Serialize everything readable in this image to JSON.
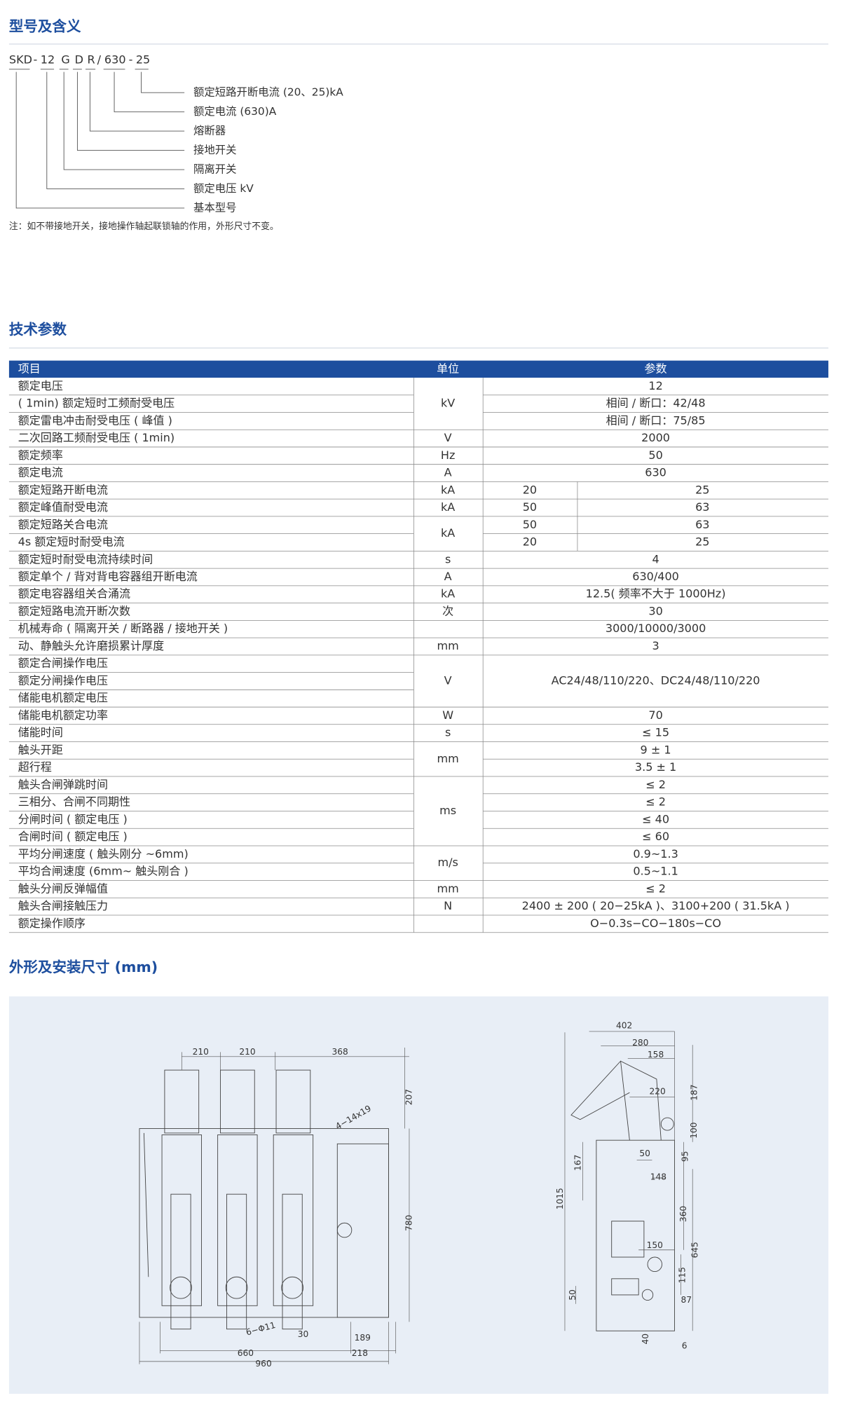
{
  "section1": {
    "title": "型号及含义",
    "code_parts": [
      "SKD",
      "-",
      "12",
      "G",
      "D",
      "R",
      "/",
      "630",
      "-",
      "25"
    ],
    "meanings": [
      "额定短路开断电流 (20、25)kA",
      "额定电流 (630)A",
      "熔断器",
      "接地开关",
      "隔离开关",
      "额定电压 kV",
      "基本型号"
    ],
    "note": "注：如不带接地开关，接地操作轴起联锁轴的作用，外形尺寸不变。"
  },
  "section2": {
    "title": "技术参数",
    "header": [
      "项目",
      "单位",
      "参数"
    ],
    "groups": [
      {
        "unit": "kV",
        "rows": [
          {
            "item": "额定电压",
            "param": "12"
          },
          {
            "item": "( 1min) 额定短时工频耐受电压",
            "param": "相间 / 断口：42/48"
          },
          {
            "item": "额定雷电冲击耐受电压 ( 峰值 )",
            "param": "相间 / 断口：75/85"
          }
        ]
      },
      {
        "unit": "V",
        "rows": [
          {
            "item": "二次回路工频耐受电压 ( 1min)",
            "param": "2000"
          }
        ]
      },
      {
        "unit": "Hz",
        "rows": [
          {
            "item": "额定频率",
            "param": "50"
          }
        ]
      },
      {
        "unit": "A",
        "rows": [
          {
            "item": "额定电流",
            "param": "630"
          }
        ]
      },
      {
        "unit": "kA",
        "rows": [
          {
            "item": "额定短路开断电流",
            "params": [
              "20",
              "25"
            ]
          }
        ]
      },
      {
        "unit": "kA",
        "rows": [
          {
            "item": "额定峰值耐受电流",
            "params": [
              "50",
              "63"
            ]
          }
        ]
      },
      {
        "unit": "kA",
        "rows": [
          {
            "item": "额定短路关合电流",
            "params": [
              "50",
              "63"
            ]
          },
          {
            "item": "4s 额定短时耐受电流",
            "params": [
              "20",
              "25"
            ]
          }
        ]
      },
      {
        "unit": "s",
        "rows": [
          {
            "item": "额定短时耐受电流持续时间",
            "param": "4"
          }
        ]
      },
      {
        "unit": "A",
        "rows": [
          {
            "item": "额定单个 / 背对背电容器组开断电流",
            "param": "630/400"
          }
        ]
      },
      {
        "unit": "kA",
        "rows": [
          {
            "item": "额定电容器组关合涌流",
            "param": "12.5( 频率不大于 1000Hz)"
          }
        ]
      },
      {
        "unit": "次",
        "rows": [
          {
            "item": "额定短路电流开断次数",
            "param": "30"
          }
        ]
      },
      {
        "rows": [
          {
            "item": "机械寿命 ( 隔离开关 / 断路器 / 接地开关 )",
            "param": "3000/10000/3000"
          }
        ]
      },
      {
        "unit": "mm",
        "rows": [
          {
            "item": "动、静触头允许磨损累计厚度",
            "param": "3"
          }
        ]
      },
      {
        "unit": "V",
        "param": "AC24/48/110/220、DC24/48/110/220",
        "rows": [
          {
            "item": "额定合闸操作电压"
          },
          {
            "item": "额定分闸操作电压"
          },
          {
            "item": "储能电机额定电压"
          }
        ]
      },
      {
        "unit": "W",
        "rows": [
          {
            "item": "储能电机额定功率",
            "param": "70"
          }
        ]
      },
      {
        "unit": "s",
        "rows": [
          {
            "item": "储能时间",
            "param": "≤ 15"
          }
        ]
      },
      {
        "unit": "mm",
        "rows": [
          {
            "item": "触头开距",
            "param": "9 ± 1"
          },
          {
            "item": "超行程",
            "param": "3.5 ± 1"
          }
        ]
      },
      {
        "unit": "ms",
        "rows": [
          {
            "item": "触头合闸弹跳时间",
            "param": "≤ 2"
          },
          {
            "item": "三相分、合闸不同期性",
            "param": "≤ 2"
          },
          {
            "item": "分闸时间 ( 额定电压 )",
            "param": "≤ 40"
          },
          {
            "item": "合闸时间 ( 额定电压 )",
            "param": "≤ 60"
          }
        ]
      },
      {
        "unit": "m/s",
        "rows": [
          {
            "item": "平均分闸速度 ( 触头刚分 ~6mm)",
            "param": "0.9~1.3"
          },
          {
            "item": "平均合闸速度 (6mm~ 触头刚合 )",
            "param": "0.5~1.1"
          }
        ]
      },
      {
        "unit": "mm",
        "rows": [
          {
            "item": "触头分闸反弹幅值",
            "param": "≤ 2"
          }
        ]
      },
      {
        "unit": "N",
        "rows": [
          {
            "item": "触头合闸接触压力",
            "param": "2400 ± 200 ( 20−25kA )、3100+200 ( 31.5kA )"
          }
        ]
      },
      {
        "rows": [
          {
            "item": "额定操作顺序",
            "param": "O−0.3s−CO−180s−CO"
          }
        ]
      }
    ]
  },
  "section3": {
    "title": "外形及安装尺寸 (mm)",
    "front_dims": [
      "210",
      "210",
      "368",
      "207",
      "780",
      "4−14x19",
      "6−Φ11",
      "30",
      "189",
      "660",
      "218",
      "960"
    ],
    "side_dims": [
      "402",
      "280",
      "158",
      "220",
      "187",
      "100",
      "95",
      "50",
      "148",
      "167",
      "1015",
      "360",
      "645",
      "150",
      "115",
      "87",
      "50",
      "40",
      "6"
    ]
  }
}
